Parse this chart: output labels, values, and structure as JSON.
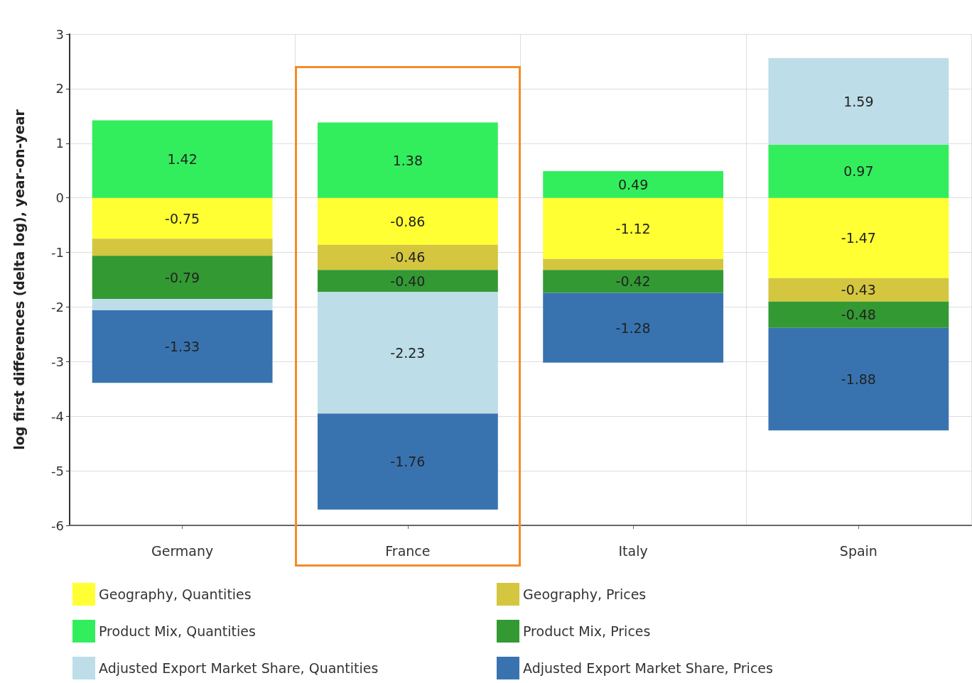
{
  "chart_data": {
    "type": "bar",
    "stacked": true,
    "ylabel": "log first differences (delta log), year-on-year",
    "categories": [
      "Germany",
      "France",
      "Italy",
      "Spain"
    ],
    "ylim": [
      -6,
      3
    ],
    "yticks": [
      -6,
      -5,
      -4,
      -3,
      -2,
      -1,
      0,
      1,
      2,
      3
    ],
    "grid": true,
    "legend": "bottom",
    "series": [
      {
        "name": "Geography, Quantities",
        "color": "#ffff33",
        "values": [
          -0.75,
          -0.86,
          -1.12,
          -1.47
        ],
        "value_labels": [
          "-0.75",
          "-0.86",
          "-1.12",
          "-1.47"
        ]
      },
      {
        "name": "Geography, Prices",
        "color": "#d4c63f",
        "values": [
          -0.31,
          -0.46,
          -0.2,
          -0.43
        ],
        "value_labels": [
          null,
          "-0.46",
          null,
          "-0.43"
        ]
      },
      {
        "name": "Product Mix, Quantities",
        "color": "#33ee5c",
        "values": [
          1.42,
          1.38,
          0.49,
          0.97
        ],
        "value_labels": [
          "1.42",
          "1.38",
          "0.49",
          "0.97"
        ]
      },
      {
        "name": "Product Mix, Prices",
        "color": "#339933",
        "values": [
          -0.79,
          -0.4,
          -0.42,
          -0.48
        ],
        "value_labels": [
          "-0.79",
          "-0.40",
          "-0.42",
          "-0.48"
        ]
      },
      {
        "name": "Adjusted Export Market Share, Quantities",
        "color": "#bddde8",
        "values": [
          -0.21,
          -2.23,
          null,
          1.59
        ],
        "value_labels": [
          null,
          "-2.23",
          null,
          "1.59"
        ]
      },
      {
        "name": "Adjusted Export Market Share, Prices",
        "color": "#3873b0",
        "values": [
          -1.33,
          -1.76,
          -1.28,
          -1.88
        ],
        "value_labels": [
          "-1.33",
          "-1.76",
          "-1.28",
          "-1.88"
        ]
      }
    ]
  }
}
